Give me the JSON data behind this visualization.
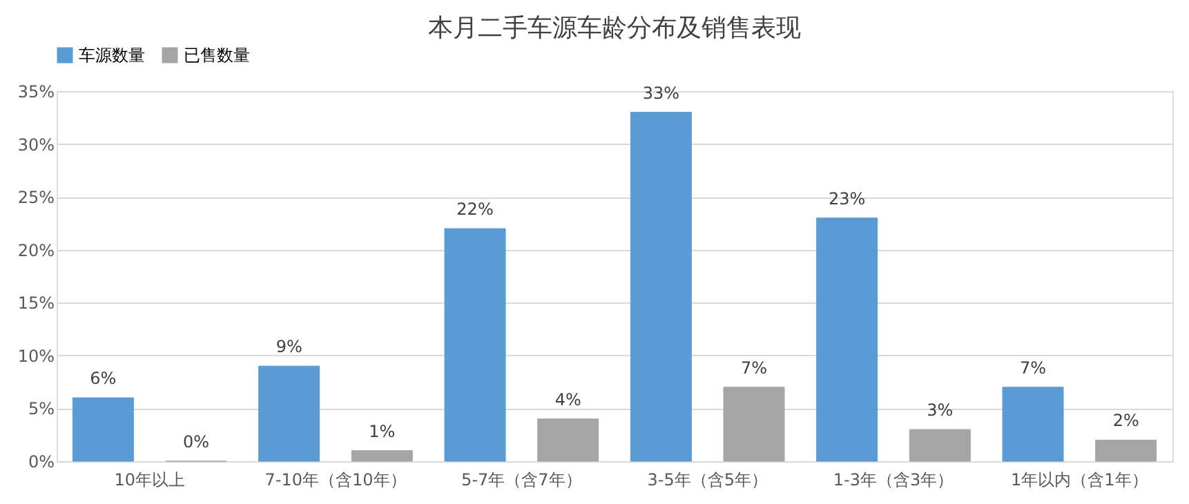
{
  "chart_data": {
    "type": "bar",
    "title": "本月二手车源车龄分布及销售表现",
    "categories": [
      "10年以上",
      "7-10年（含10年）",
      "5-7年（含7年）",
      "3-5年（含5年）",
      "1-3年（含3年）",
      "1年以内（含1年）"
    ],
    "series": [
      {
        "name": "车源数量",
        "color": "#5b9bd5",
        "values": [
          6,
          9,
          22,
          33,
          23,
          7
        ],
        "value_labels": [
          "6%",
          "9%",
          "22%",
          "33%",
          "23%",
          "7%"
        ]
      },
      {
        "name": "已售数量",
        "color": "#a5a5a5",
        "values": [
          0,
          1,
          4,
          7,
          3,
          2
        ],
        "value_labels": [
          "0%",
          "1%",
          "4%",
          "7%",
          "3%",
          "2%"
        ]
      }
    ],
    "ylim": [
      0,
      35
    ],
    "yticks": [
      {
        "value": 0,
        "label": "0%"
      },
      {
        "value": 5,
        "label": "5%"
      },
      {
        "value": 10,
        "label": "10%"
      },
      {
        "value": 15,
        "label": "15%"
      },
      {
        "value": 20,
        "label": "20%"
      },
      {
        "value": 25,
        "label": "25%"
      },
      {
        "value": 30,
        "label": "30%"
      },
      {
        "value": 35,
        "label": "35%"
      }
    ],
    "grid": "y",
    "legend": "top"
  }
}
